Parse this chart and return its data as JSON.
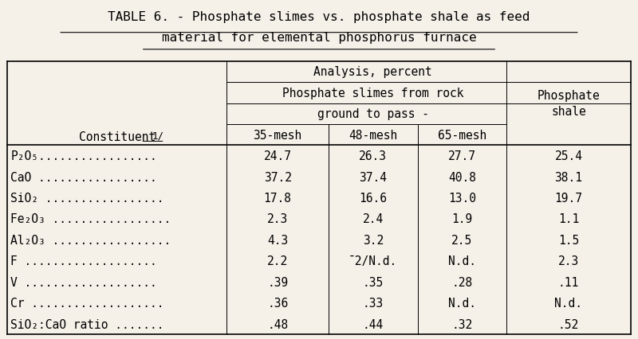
{
  "title_line1": "TABLE 6. - Phosphate slimes vs. phosphate shale as feed",
  "title_line2": "material for elemental phosphorus furnace",
  "header_row1_col1": "",
  "header_row1_col2": "Analysis, percent",
  "header_row1_col3": "",
  "header_row2_col2": "Phosphate slimes from rock",
  "header_row2_col3": "",
  "header_row3_col2": "ground to pass -",
  "header_row3_col3": "",
  "col_headers": [
    "Constituent¯1/",
    "35-mesh",
    "48-mesh",
    "65-mesh",
    "Phosphate\nshale"
  ],
  "rows": [
    [
      "P₂O₅.................",
      "24.7",
      "26.3",
      "27.7",
      "25.4"
    ],
    [
      "CaO .................",
      "37.2",
      "37.4",
      "40.8",
      "38.1"
    ],
    [
      "SiO₂ .................",
      "17.8",
      "16.6",
      "13.0",
      "19.7"
    ],
    [
      "Fe₂O₃ .................",
      "2.3",
      "2.4",
      "1.9",
      "1.1"
    ],
    [
      "Al₂O₃ .................",
      "4.3",
      "3.2",
      "2.5",
      "1.5"
    ],
    [
      "F ...................",
      "2.2",
      "¯2/N.d.",
      "N.d.",
      "2.3"
    ],
    [
      "V ...................",
      ".39",
      ".35",
      ".28",
      ".11"
    ],
    [
      "Cr ...................",
      ".36",
      ".33",
      "N.d.",
      "N.d."
    ],
    [
      "SiO₂:CaO ratio .......",
      ".48",
      ".44",
      ".32",
      ".52"
    ]
  ],
  "bg_color": "#f5f0e8",
  "font_family": "monospace",
  "font_size": 10.5,
  "title_font_size": 11.5
}
